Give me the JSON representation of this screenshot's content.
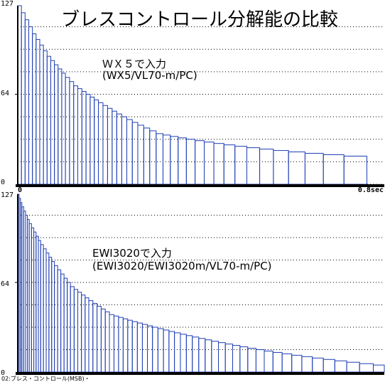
{
  "title": "ブレスコントロール分解能の比較",
  "footer": "02:ブレス・コントロール(MSB)・",
  "colors": {
    "bar": "#1f3fb4",
    "grid": "#000000",
    "axis": "#000000",
    "background": "#ffffff"
  },
  "chart_data": [
    {
      "type": "bar",
      "title": "ＷＸ５で入力",
      "subtitle": "(WX5/VL70-m/PC)",
      "y_ticks": [
        "127",
        "64",
        "0"
      ],
      "x_ticks": [
        "0",
        "0.8sec"
      ],
      "ylim": [
        0,
        127
      ],
      "xlim": [
        0,
        0.8
      ],
      "grid": "dotted horizontal",
      "values": [
        127,
        122,
        117,
        112,
        107,
        103,
        99,
        95,
        91,
        88,
        85,
        82,
        79,
        76,
        73,
        70,
        68,
        66,
        64,
        62,
        60,
        58,
        56,
        54,
        52,
        50,
        48,
        46,
        44,
        42,
        40,
        38,
        36,
        35,
        34,
        33,
        32,
        31,
        30,
        29,
        28,
        27,
        26,
        25,
        24,
        23,
        22,
        21,
        20
      ],
      "widths": [
        0.008,
        0.008,
        0.008,
        0.008,
        0.008,
        0.008,
        0.008,
        0.008,
        0.008,
        0.008,
        0.008,
        0.008,
        0.008,
        0.009,
        0.009,
        0.009,
        0.009,
        0.009,
        0.009,
        0.009,
        0.009,
        0.01,
        0.01,
        0.01,
        0.01,
        0.011,
        0.011,
        0.012,
        0.012,
        0.013,
        0.013,
        0.014,
        0.015,
        0.016,
        0.017,
        0.018,
        0.019,
        0.02,
        0.021,
        0.022,
        0.024,
        0.026,
        0.028,
        0.03,
        0.033,
        0.036,
        0.04,
        0.045,
        0.05
      ]
    },
    {
      "type": "bar",
      "title": "EWI3020で入力",
      "subtitle": "(EWI3020/EWI3020m/VL70-m/PC)",
      "y_ticks": [
        "127",
        "64",
        "0"
      ],
      "ylim": [
        0,
        127
      ],
      "xlim": [
        0,
        0.8
      ],
      "grid": "dotted horizontal",
      "values": [
        127,
        124,
        121,
        118,
        115,
        112,
        109,
        106,
        103,
        100,
        97,
        94,
        91,
        88,
        85,
        82,
        79,
        76,
        73,
        70,
        67,
        64,
        61,
        59,
        57,
        55,
        53,
        51,
        49,
        47,
        45,
        43,
        41,
        40,
        39,
        38,
        37,
        36,
        35,
        34,
        33,
        32,
        31,
        30,
        29,
        28,
        27,
        26,
        25,
        24,
        23,
        22,
        21,
        20,
        19,
        18,
        17,
        16,
        15,
        14,
        13,
        12,
        11,
        10,
        9,
        8,
        7,
        6,
        5,
        4,
        3,
        2,
        1
      ],
      "widths": [
        0.003,
        0.003,
        0.003,
        0.004,
        0.004,
        0.004,
        0.004,
        0.005,
        0.005,
        0.005,
        0.005,
        0.005,
        0.006,
        0.006,
        0.006,
        0.006,
        0.006,
        0.007,
        0.007,
        0.007,
        0.007,
        0.007,
        0.008,
        0.008,
        0.008,
        0.008,
        0.008,
        0.009,
        0.009,
        0.009,
        0.009,
        0.009,
        0.01,
        0.01,
        0.01,
        0.01,
        0.01,
        0.011,
        0.011,
        0.011,
        0.011,
        0.012,
        0.012,
        0.012,
        0.012,
        0.013,
        0.013,
        0.013,
        0.014,
        0.014,
        0.014,
        0.015,
        0.015,
        0.016,
        0.016,
        0.017,
        0.018,
        0.018,
        0.019,
        0.02,
        0.021,
        0.022,
        0.023,
        0.024,
        0.025,
        0.026,
        0.028,
        0.03,
        0.032,
        0.034,
        0.036,
        0.038,
        0.04
      ]
    }
  ]
}
